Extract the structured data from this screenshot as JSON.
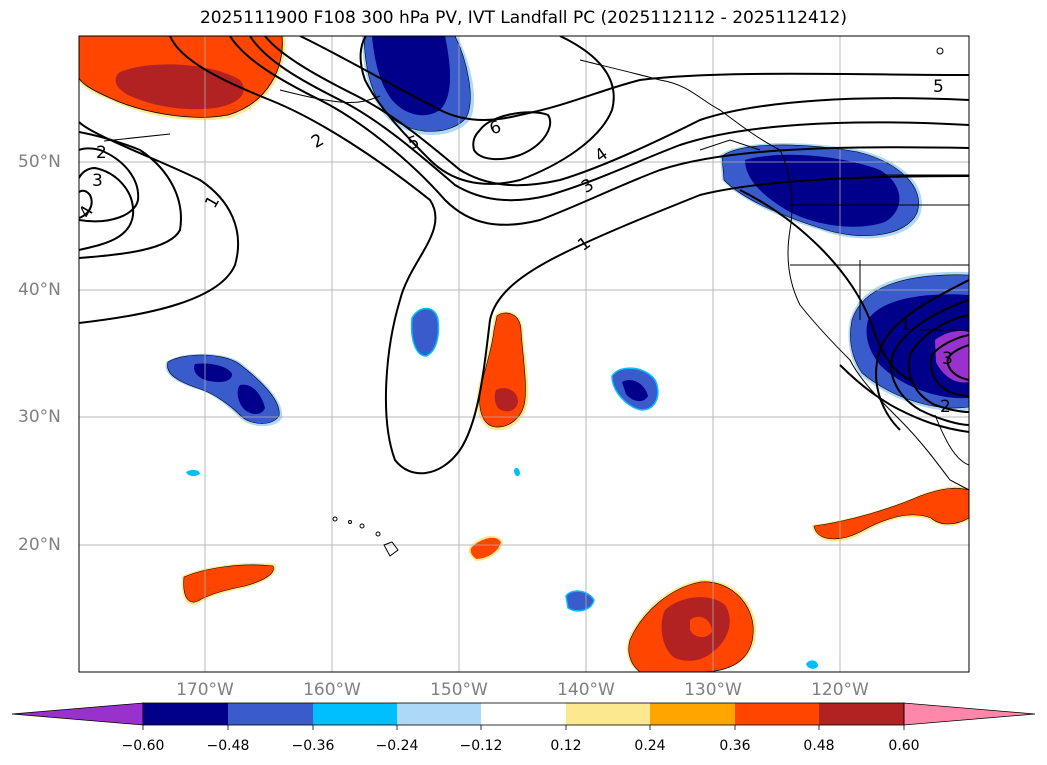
{
  "title": "2025111900 F108 300 hPa PV, IVT Landfall PC (2025112112 - 2025112412)",
  "lat_labels": [
    "50°N",
    "40°N",
    "30°N",
    "20°N"
  ],
  "lon_labels": [
    "170°W",
    "160°W",
    "150°W",
    "140°W",
    "130°W",
    "120°W"
  ],
  "contour_labels": [
    "1",
    "1",
    "2",
    "2",
    "3",
    "3",
    "4",
    "5",
    "5",
    "6",
    "4",
    "1",
    "2",
    "3"
  ],
  "colorbar": {
    "ticks": [
      "−0.60",
      "−0.48",
      "−0.36",
      "−0.24",
      "−0.12",
      "0.12",
      "0.24",
      "0.36",
      "0.48",
      "0.60"
    ],
    "colors": [
      "#9932cc",
      "#00008b",
      "#3a5bcc",
      "#00bfff",
      "#add8f6",
      "#ffffff",
      "#fce98f",
      "#ffa500",
      "#ff4500",
      "#b22222",
      "#ff88aa"
    ]
  },
  "chart_data": {
    "type": "heatmap",
    "title": "2025111900 F108 300 hPa PV, IVT Landfall PC (2025112112 - 2025112412)",
    "variable_fill": "IVT Landfall PC",
    "variable_contour": "300 hPa PV",
    "lon_range": [
      -180,
      -110
    ],
    "lat_range": [
      10,
      60
    ],
    "levels": [
      -0.6,
      -0.48,
      -0.36,
      -0.24,
      -0.12,
      0.12,
      0.24,
      0.36,
      0.48,
      0.6
    ],
    "contour_levels": [
      1,
      2,
      3,
      4,
      5,
      6
    ]
  }
}
